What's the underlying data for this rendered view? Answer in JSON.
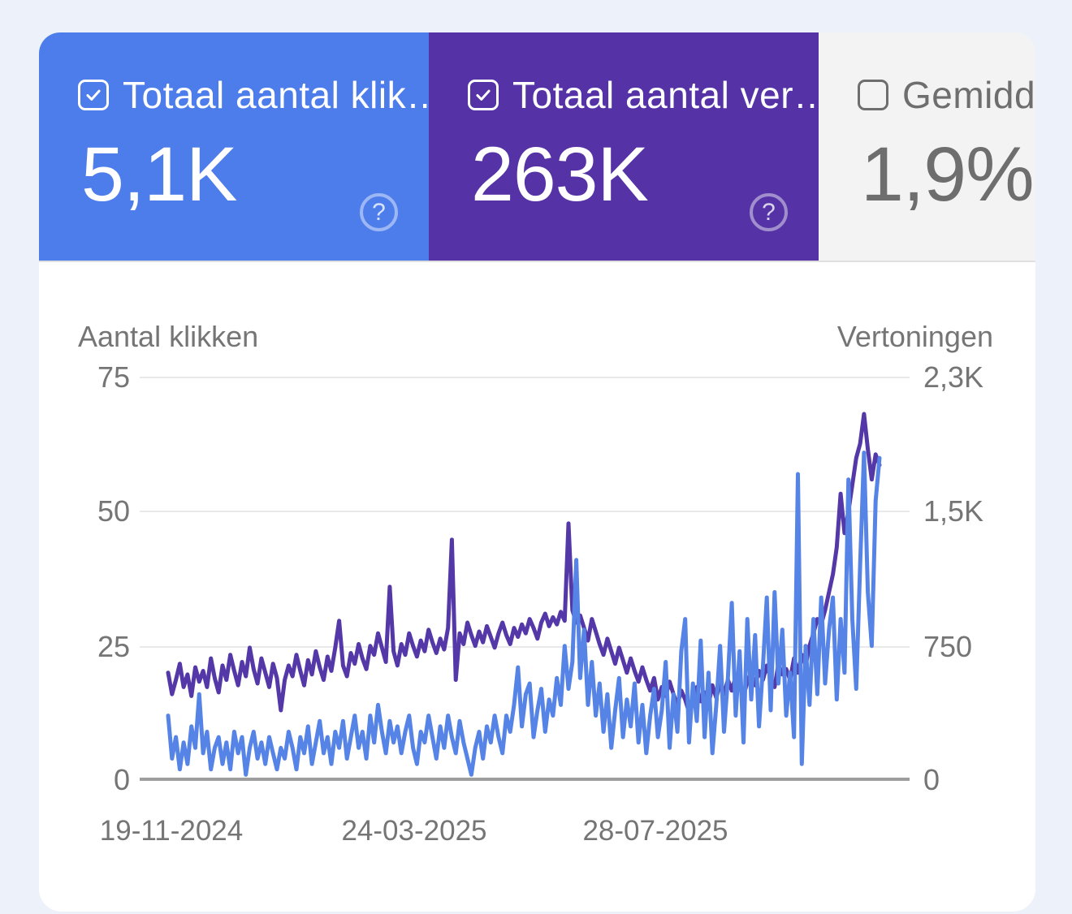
{
  "page": {
    "background_color": "#EDF1F9",
    "panel_color": "#FFFFFF",
    "divider_color": "#E0E0E0"
  },
  "cards": {
    "clicks": {
      "label": "Totaal aantal klik…",
      "value": "5,1K",
      "checked": true,
      "bg": "#4D7DEB",
      "text_color": "#FFFFFF",
      "help_glyph": "?"
    },
    "impressions": {
      "label": "Totaal aantal ver…",
      "value": "263K",
      "checked": true,
      "bg": "#5532A5",
      "text_color": "#FFFFFF",
      "help_glyph": "?"
    },
    "ctr": {
      "label": "Gemidde",
      "value": "1,9%",
      "checked": false,
      "bg": "#F3F3F3",
      "text_color": "#6E6E6E"
    }
  },
  "chart": {
    "left_axis_title": "Aantal klikken",
    "right_axis_title": "Vertoningen",
    "left_ticks": [
      "75",
      "50",
      "25",
      "0"
    ],
    "right_ticks": [
      "2,3K",
      "1,5K",
      "750",
      "0"
    ],
    "x_ticks": [
      "19-11-2024",
      "24-03-2025",
      "28-07-2025"
    ],
    "gridline_color": "#E9E9E9",
    "axis_line_color": "#9E9E9E",
    "tick_text_color": "#757575"
  },
  "chart_data": {
    "type": "line",
    "title": "",
    "x": {
      "start_date": "16-11-2024",
      "end_date": "17-11-2025",
      "tick_labels": [
        "19-11-2024",
        "24-03-2025",
        "28-07-2025"
      ],
      "point_interval_days": 2
    },
    "left_axis": {
      "title": "Aantal klikken",
      "tick_labels": [
        "75",
        "50",
        "25",
        "0"
      ],
      "tick_values": [
        75,
        50,
        25,
        0
      ],
      "min": 0,
      "max": 75
    },
    "right_axis": {
      "title": "Vertoningen",
      "tick_labels": [
        "2,3K",
        "1,5K",
        "750",
        "0"
      ],
      "tick_values": [
        2250,
        1500,
        750,
        0
      ],
      "min": 0,
      "max": 2250
    },
    "grid": "horizontal",
    "legend": "none",
    "series": [
      {
        "name": "Vertoningen",
        "axis": "right",
        "color": "#5438A8",
        "total_shown_on_card": "263K",
        "values": [
          600,
          480,
          560,
          650,
          520,
          590,
          470,
          630,
          550,
          610,
          520,
          680,
          570,
          490,
          640,
          560,
          700,
          610,
          530,
          660,
          580,
          740,
          620,
          540,
          680,
          600,
          520,
          650,
          570,
          390,
          560,
          640,
          580,
          700,
          610,
          530,
          670,
          590,
          720,
          630,
          560,
          690,
          610,
          740,
          890,
          640,
          580,
          710,
          650,
          760,
          680,
          620,
          750,
          700,
          820,
          740,
          660,
          1080,
          720,
          640,
          760,
          700,
          820,
          750,
          690,
          780,
          720,
          840,
          770,
          710,
          790,
          730,
          850,
          1343,
          560,
          820,
          760,
          880,
          810,
          750,
          830,
          770,
          860,
          800,
          740,
          820,
          880,
          810,
          760,
          850,
          800,
          870,
          820,
          900,
          850,
          790,
          880,
          930,
          860,
          910,
          870,
          940,
          890,
          1434,
          950,
          880,
          920,
          850,
          780,
          900,
          830,
          760,
          700,
          790,
          720,
          650,
          740,
          670,
          600,
          680,
          610,
          550,
          630,
          560,
          500,
          570,
          450,
          520,
          470,
          550,
          480,
          420,
          500,
          450,
          380,
          460,
          520,
          440,
          490,
          420,
          530,
          460,
          540,
          480,
          560,
          500,
          580,
          520,
          470,
          550,
          600,
          530,
          610,
          560,
          640,
          570,
          520,
          650,
          590,
          620,
          560,
          680,
          600,
          700,
          640,
          750,
          820,
          900,
          870,
          950,
          1050,
          1150,
          1300,
          1600,
          1380,
          1500,
          1650,
          1800,
          1880,
          2046,
          1850,
          1680,
          1820,
          1760
        ]
      },
      {
        "name": "Aantal klikken",
        "axis": "left",
        "color": "#5583E6",
        "total_shown_on_card": "5,1K",
        "values": [
          12,
          4,
          8,
          2,
          7,
          3,
          10,
          6,
          16,
          5,
          9,
          2,
          6,
          8,
          3,
          7,
          2,
          9,
          5,
          8,
          1,
          6,
          9,
          4,
          7,
          3,
          8,
          5,
          2,
          6,
          4,
          9,
          6,
          2,
          8,
          5,
          10,
          3,
          7,
          11,
          5,
          8,
          3,
          9,
          6,
          11,
          4,
          8,
          12,
          6,
          9,
          4,
          12,
          7,
          14,
          9,
          5,
          11,
          7,
          10,
          5,
          9,
          12,
          6,
          3,
          9,
          7,
          12,
          8,
          4,
          10,
          6,
          12,
          8,
          5,
          11,
          7,
          4,
          1,
          6,
          9,
          4,
          10,
          7,
          12,
          8,
          5,
          12,
          9,
          14,
          21,
          10,
          16,
          18,
          8,
          13,
          17,
          9,
          15,
          12,
          19,
          14,
          25,
          17,
          22,
          41,
          19,
          28,
          14,
          22,
          12,
          18,
          9,
          16,
          6,
          13,
          19,
          8,
          15,
          10,
          18,
          7,
          14,
          5,
          12,
          17,
          8,
          13,
          22,
          6,
          16,
          9,
          24,
          30,
          7,
          18,
          11,
          26,
          8,
          20,
          5,
          14,
          25,
          9,
          19,
          33,
          12,
          24,
          7,
          30,
          15,
          27,
          10,
          21,
          34,
          13,
          35,
          18,
          28,
          12,
          20,
          8,
          57,
          3,
          25,
          14,
          30,
          16,
          34,
          18,
          28,
          34,
          15,
          30,
          20,
          56,
          30,
          17,
          40,
          61,
          35,
          25,
          52,
          60
        ]
      }
    ]
  }
}
